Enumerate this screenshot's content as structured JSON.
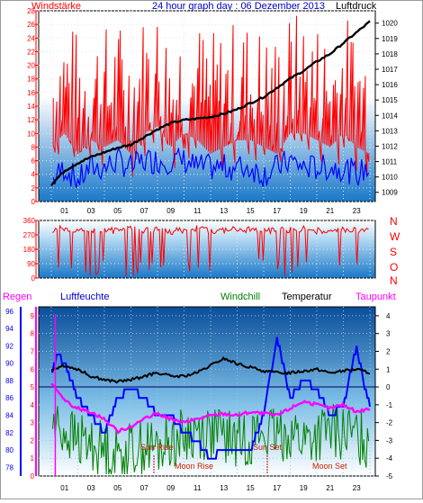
{
  "header": {
    "left_title": "Windstärke",
    "center_title": "24 hour graph day : 06 Dezember 2013",
    "right_title": "Luftdruck"
  },
  "panel2": {
    "directions": [
      "N",
      "W",
      "S",
      "O",
      "N"
    ]
  },
  "panel3": {
    "labels": {
      "regen": "Regen",
      "luftfeuchte": "Luftfeuchte",
      "windchill": "Windchill",
      "temperatur": "Temperatur",
      "taupunkt": "Taupunkt"
    },
    "annotations": {
      "sun_rise": "Sun Rise",
      "sun_set": "Sun Set",
      "moon_rise": "Moon Rise",
      "moon_set": "Moon Set"
    }
  },
  "colors": {
    "wind": "#ff0000",
    "gust_blue": "#0000ff",
    "pressure": "#000000",
    "humidity": "#0000ff",
    "windchill": "#008000",
    "temperature": "#000000",
    "dewpoint": "#ff00ff",
    "rain": "#ff00ff",
    "axis_left1": "#ff0000",
    "axis_right1": "#000000",
    "axis_blue": "#0000ff"
  },
  "chart_data": [
    {
      "type": "line",
      "title": "24 hour graph day : 06 Dezember 2013",
      "x_ticks": [
        "01",
        "03",
        "05",
        "07",
        "09",
        "11",
        "13",
        "15",
        "17",
        "19",
        "21",
        "23"
      ],
      "left_axis": {
        "label": "Windstärke",
        "ticks": [
          0,
          2,
          4,
          6,
          8,
          10,
          12,
          14,
          16,
          18,
          20,
          22,
          24,
          26,
          28
        ],
        "ylim": [
          0,
          28
        ]
      },
      "right_axis": {
        "label": "Luftdruck",
        "ticks": [
          1009,
          1010,
          1011,
          1012,
          1013,
          1014,
          1015,
          1016,
          1017,
          1018,
          1019,
          1020
        ],
        "ylim": [
          1008.4,
          1020.8
        ]
      },
      "series": [
        {
          "name": "Windstärke",
          "axis": "left",
          "hours": [
            0,
            1,
            2,
            3,
            4,
            5,
            6,
            7,
            8,
            9,
            10,
            11,
            12,
            13,
            14,
            15,
            16,
            17,
            18,
            19,
            20,
            21,
            22,
            23,
            24
          ],
          "values": [
            14,
            16,
            13,
            15,
            14,
            15,
            13,
            16,
            17,
            14,
            16,
            15,
            13,
            14,
            15,
            15,
            14,
            13,
            16,
            16,
            15,
            14,
            16,
            14,
            13
          ]
        },
        {
          "axis": "left",
          "hours": [
            0,
            1,
            2,
            3,
            4,
            5,
            6,
            7,
            8,
            9,
            10,
            11,
            12,
            13,
            14,
            15,
            16,
            17,
            18,
            19,
            20,
            21,
            22,
            23,
            24
          ],
          "values": [
            3,
            5,
            3,
            5,
            5,
            6,
            5,
            6,
            6,
            6,
            6,
            5,
            5,
            5,
            5,
            5,
            4,
            5,
            6,
            5,
            5,
            5,
            5,
            4,
            5
          ]
        },
        {
          "name": "Luftdruck",
          "axis": "right",
          "hours": [
            0,
            1,
            2,
            3,
            4,
            5,
            6,
            7,
            8,
            9,
            10,
            11,
            12,
            13,
            14,
            15,
            16,
            17,
            18,
            19,
            20,
            21,
            22,
            23,
            24
          ],
          "values": [
            1009.5,
            1010.4,
            1010.9,
            1011.3,
            1011.6,
            1011.9,
            1012.1,
            1012.6,
            1013.1,
            1013.5,
            1013.7,
            1013.8,
            1013.9,
            1014.1,
            1014.4,
            1014.8,
            1015.2,
            1015.8,
            1016.4,
            1016.9,
            1017.5,
            1018.0,
            1018.7,
            1019.4,
            1020.1
          ]
        }
      ]
    },
    {
      "type": "line",
      "x_ticks": [
        "01",
        "03",
        "05",
        "07",
        "09",
        "11",
        "13",
        "15",
        "17",
        "19",
        "21",
        "23"
      ],
      "left_axis": {
        "ticks": [
          0,
          90,
          180,
          270,
          360
        ],
        "ylim": [
          0,
          360
        ]
      },
      "right_axis": {
        "labels": [
          "N",
          "W",
          "S",
          "O",
          "N"
        ]
      },
      "series": [
        {
          "hours": [
            0,
            1,
            2,
            3,
            4,
            5,
            6,
            7,
            8,
            9,
            10,
            11,
            12,
            13,
            14,
            15,
            16,
            17,
            18,
            19,
            20,
            21,
            22,
            23,
            24
          ],
          "values": [
            300,
            310,
            290,
            305,
            300,
            295,
            310,
            300,
            305,
            290,
            300,
            310,
            295,
            300,
            305,
            300,
            290,
            305,
            300,
            310,
            295,
            300,
            305,
            300,
            300
          ]
        }
      ]
    },
    {
      "type": "line",
      "x_ticks": [
        "01",
        "03",
        "05",
        "07",
        "09",
        "11",
        "13",
        "15",
        "17",
        "19",
        "21",
        "23"
      ],
      "left_axis": {
        "label": "Luftfeuchte",
        "ticks": [
          78,
          80,
          82,
          84,
          86,
          88,
          90,
          92,
          94,
          96
        ],
        "ylim": [
          77,
          96.5
        ]
      },
      "rain_axis": {
        "label": "Regen",
        "ticks": [
          0,
          1,
          2,
          3,
          4,
          5,
          6,
          7,
          8,
          9
        ]
      },
      "right_axis": {
        "label": "Temperatur",
        "ticks": [
          -5,
          -4,
          -3,
          -2,
          -1,
          0,
          1,
          2,
          3,
          4
        ],
        "ylim": [
          -5,
          4.5
        ]
      },
      "series": [
        {
          "name": "Luftfeuchte",
          "axis": "left",
          "hours": [
            0,
            0.5,
            1,
            1.5,
            2,
            3,
            4,
            5,
            6,
            7,
            8,
            9,
            10,
            11,
            12,
            13,
            14,
            15,
            16,
            17,
            18,
            19,
            20,
            21,
            22,
            23,
            23.5,
            24
          ],
          "values": [
            89,
            91,
            90,
            88,
            86,
            84,
            82,
            86,
            87,
            86,
            84,
            84,
            82,
            81,
            79,
            80,
            80,
            80,
            84,
            93,
            86,
            88,
            87,
            84,
            85,
            92,
            88,
            85
          ]
        },
        {
          "name": "Windchill",
          "axis": "right",
          "hours": [
            0,
            1,
            2,
            3,
            4,
            5,
            6,
            7,
            8,
            9,
            10,
            11,
            12,
            13,
            14,
            15,
            16,
            17,
            18,
            19,
            20,
            21,
            22,
            23,
            24
          ],
          "values": [
            -2.0,
            -2.5,
            -3.0,
            -3.2,
            -3.5,
            -3.8,
            -3.5,
            -3.3,
            -3.5,
            -3.0,
            -2.8,
            -2.5,
            -2.5,
            -2.8,
            -3.0,
            -2.8,
            -2.6,
            -2.8,
            -2.5,
            -3.0,
            -2.8,
            -2.5,
            -2.6,
            -2.8,
            -3.0
          ]
        },
        {
          "name": "Temperatur",
          "axis": "right",
          "hours": [
            0,
            1,
            2,
            3,
            4,
            5,
            6,
            7,
            8,
            9,
            10,
            11,
            12,
            13,
            14,
            15,
            16,
            17,
            18,
            19,
            20,
            21,
            22,
            23,
            24
          ],
          "values": [
            1.0,
            1.2,
            1.0,
            0.6,
            0.4,
            0.3,
            0.4,
            0.6,
            0.8,
            0.6,
            0.6,
            0.8,
            1.2,
            1.6,
            1.3,
            1.1,
            0.9,
            0.8,
            0.8,
            0.9,
            1.0,
            0.8,
            0.9,
            1.0,
            0.8
          ]
        },
        {
          "name": "Taupunkt",
          "axis": "right",
          "hours": [
            0,
            1,
            2,
            3,
            4,
            5,
            6,
            7,
            8,
            9,
            10,
            11,
            12,
            13,
            14,
            15,
            16,
            17,
            18,
            19,
            20,
            21,
            22,
            23,
            24
          ],
          "values": [
            0.2,
            -0.8,
            -1.2,
            -1.4,
            -1.8,
            -2.5,
            -2.2,
            -1.8,
            -1.5,
            -1.8,
            -2.0,
            -1.8,
            -1.6,
            -1.5,
            -1.6,
            -1.4,
            -1.5,
            -1.6,
            -1.2,
            -0.8,
            -1.0,
            -1.2,
            -1.0,
            -1.4,
            -1.2
          ]
        }
      ],
      "annotations": [
        "Sun Rise",
        "Sun Set",
        "Moon Rise",
        "Moon Set"
      ]
    }
  ]
}
